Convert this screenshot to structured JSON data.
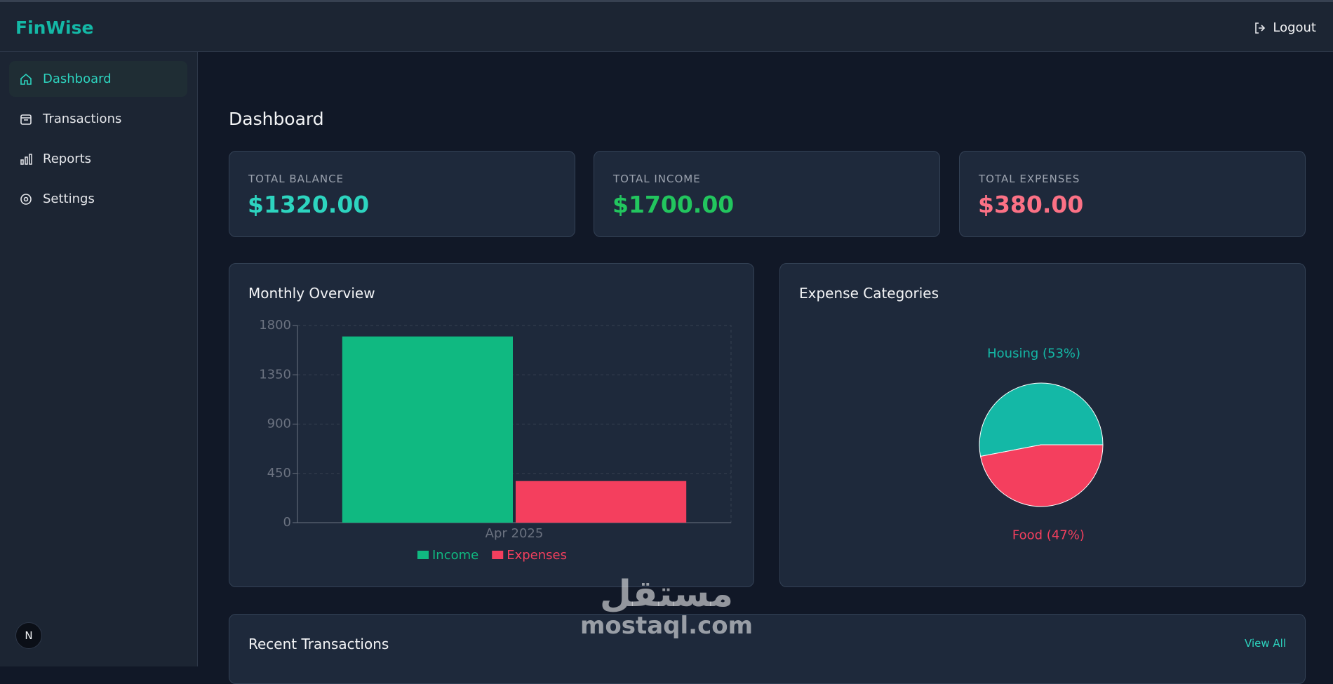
{
  "header": {
    "brand": "FinWise",
    "logout": "Logout"
  },
  "sidebar": {
    "items": [
      "Dashboard",
      "Transactions",
      "Reports",
      "Settings"
    ],
    "badge": "N"
  },
  "page_title": "Dashboard",
  "cards": [
    {
      "label": "TOTAL BALANCE",
      "value": "$1320.00"
    },
    {
      "label": "TOTAL INCOME",
      "value": "$1700.00"
    },
    {
      "label": "TOTAL EXPENSES",
      "value": "$380.00"
    }
  ],
  "recent": {
    "title": "Recent Transactions",
    "link": "View All"
  },
  "watermark": {
    "arabic": "مستقل",
    "latin": "mostaql.com"
  },
  "chart_data": [
    {
      "type": "bar",
      "title": "Monthly Overview",
      "categories": [
        "Apr 2025"
      ],
      "series": [
        {
          "name": "Income",
          "color": "#10b981",
          "values": [
            1700
          ]
        },
        {
          "name": "Expenses",
          "color": "#f43f5e",
          "values": [
            380
          ]
        }
      ],
      "ylim": [
        0,
        1800
      ],
      "yticks": [
        0,
        450,
        900,
        1350,
        1800
      ],
      "grid": true
    },
    {
      "type": "pie",
      "title": "Expense Categories",
      "categories": [
        "Housing",
        "Food"
      ],
      "values": [
        53,
        47
      ],
      "value_labels": [
        "Housing (53%)",
        "Food (47%)"
      ],
      "colors": [
        "#14b8a6",
        "#f43f5e"
      ]
    }
  ]
}
